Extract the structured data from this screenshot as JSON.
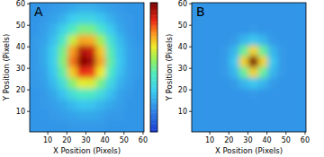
{
  "chart_data": [
    {
      "type": "heatmap",
      "title": "A",
      "xlabel": "X Position (Pixels)",
      "ylabel": "Y Position (Pixels)",
      "xlim": [
        0.5,
        60.5
      ],
      "ylim": [
        0.5,
        60.5
      ],
      "xticks": [
        10,
        20,
        30,
        40,
        50,
        60
      ],
      "yticks": [
        10,
        20,
        30,
        40,
        50,
        60
      ],
      "color_range": [
        0,
        1
      ],
      "cells": [
        [
          0.2,
          0.2,
          0.21,
          0.22,
          0.24,
          0.26,
          0.26,
          0.24,
          0.22,
          0.21,
          0.2,
          0.2
        ],
        [
          0.2,
          0.21,
          0.23,
          0.26,
          0.32,
          0.35,
          0.35,
          0.31,
          0.26,
          0.22,
          0.21,
          0.2
        ],
        [
          0.2,
          0.22,
          0.26,
          0.34,
          0.44,
          0.52,
          0.51,
          0.42,
          0.32,
          0.24,
          0.21,
          0.2
        ],
        [
          0.21,
          0.23,
          0.29,
          0.43,
          0.61,
          0.74,
          0.73,
          0.57,
          0.4,
          0.28,
          0.22,
          0.2
        ],
        [
          0.21,
          0.24,
          0.33,
          0.51,
          0.75,
          0.93,
          0.9,
          0.7,
          0.46,
          0.3,
          0.23,
          0.21
        ],
        [
          0.21,
          0.24,
          0.33,
          0.53,
          0.79,
          0.98,
          0.95,
          0.74,
          0.48,
          0.31,
          0.23,
          0.21
        ],
        [
          0.21,
          0.23,
          0.31,
          0.48,
          0.7,
          0.86,
          0.84,
          0.66,
          0.44,
          0.29,
          0.23,
          0.21
        ],
        [
          0.21,
          0.22,
          0.28,
          0.39,
          0.54,
          0.65,
          0.64,
          0.51,
          0.36,
          0.26,
          0.22,
          0.2
        ],
        [
          0.2,
          0.21,
          0.24,
          0.3,
          0.39,
          0.44,
          0.44,
          0.37,
          0.29,
          0.23,
          0.21,
          0.2
        ],
        [
          0.2,
          0.21,
          0.22,
          0.24,
          0.28,
          0.31,
          0.3,
          0.27,
          0.24,
          0.22,
          0.2,
          0.2
        ],
        [
          0.2,
          0.2,
          0.21,
          0.22,
          0.23,
          0.24,
          0.24,
          0.23,
          0.21,
          0.21,
          0.2,
          0.2
        ],
        [
          0.2,
          0.2,
          0.2,
          0.2,
          0.21,
          0.21,
          0.21,
          0.21,
          0.2,
          0.2,
          0.2,
          0.2
        ]
      ]
    },
    {
      "type": "heatmap",
      "title": "B",
      "xlabel": "X Position (Pixels)",
      "ylabel": "Y Position (Pixels)",
      "xlim": [
        0.5,
        60.5
      ],
      "ylim": [
        0.5,
        60.5
      ],
      "xticks": [
        10,
        20,
        30,
        40,
        50,
        60
      ],
      "yticks": [
        10,
        20,
        30,
        40,
        50,
        60
      ],
      "color_range": [
        0,
        1
      ],
      "cells": [
        [
          0.2,
          0.2,
          0.2,
          0.2,
          0.2,
          0.2,
          0.2,
          0.2,
          0.2,
          0.2,
          0.2,
          0.2
        ],
        [
          0.2,
          0.2,
          0.2,
          0.2,
          0.2,
          0.2,
          0.2,
          0.2,
          0.2,
          0.2,
          0.2,
          0.2
        ],
        [
          0.2,
          0.2,
          0.2,
          0.2,
          0.2,
          0.2,
          0.21,
          0.2,
          0.2,
          0.2,
          0.2,
          0.2
        ],
        [
          0.2,
          0.2,
          0.2,
          0.2,
          0.21,
          0.27,
          0.31,
          0.27,
          0.21,
          0.2,
          0.2,
          0.2
        ],
        [
          0.2,
          0.2,
          0.2,
          0.21,
          0.27,
          0.49,
          0.69,
          0.49,
          0.27,
          0.21,
          0.2,
          0.2
        ],
        [
          0.2,
          0.2,
          0.2,
          0.21,
          0.31,
          0.69,
          1.0,
          0.69,
          0.31,
          0.21,
          0.2,
          0.2
        ],
        [
          0.2,
          0.2,
          0.2,
          0.21,
          0.27,
          0.49,
          0.69,
          0.49,
          0.27,
          0.21,
          0.2,
          0.2
        ],
        [
          0.2,
          0.2,
          0.2,
          0.2,
          0.21,
          0.27,
          0.31,
          0.27,
          0.21,
          0.2,
          0.2,
          0.2
        ],
        [
          0.2,
          0.2,
          0.2,
          0.2,
          0.2,
          0.2,
          0.21,
          0.2,
          0.2,
          0.2,
          0.2,
          0.2
        ],
        [
          0.2,
          0.2,
          0.2,
          0.2,
          0.2,
          0.2,
          0.2,
          0.2,
          0.2,
          0.2,
          0.2,
          0.2
        ],
        [
          0.2,
          0.2,
          0.2,
          0.2,
          0.2,
          0.2,
          0.2,
          0.2,
          0.2,
          0.2,
          0.2,
          0.2
        ],
        [
          0.2,
          0.2,
          0.2,
          0.2,
          0.2,
          0.2,
          0.2,
          0.2,
          0.2,
          0.2,
          0.2,
          0.2
        ]
      ]
    }
  ]
}
